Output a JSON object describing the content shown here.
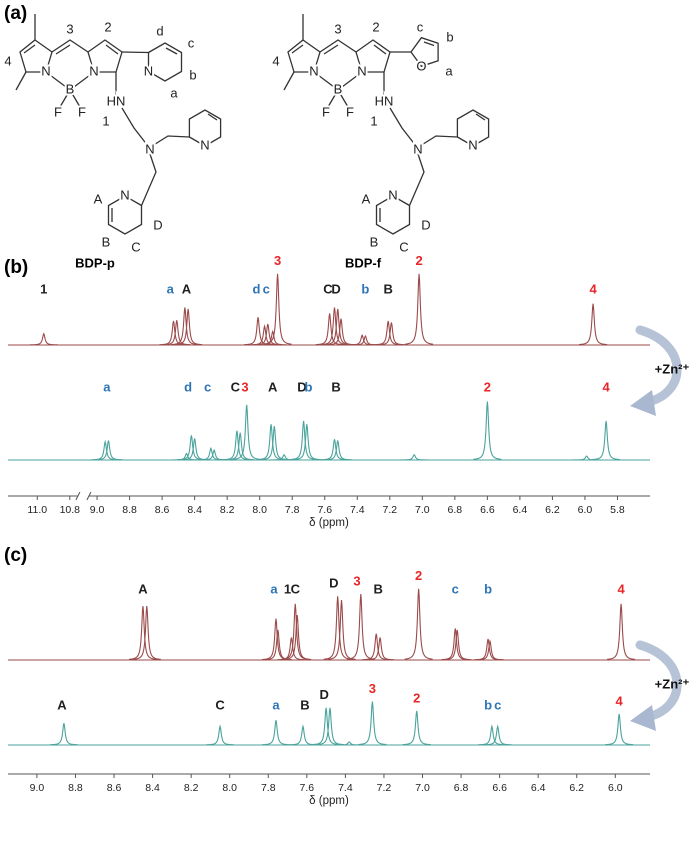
{
  "panel_label": "(a)",
  "structures": [
    {
      "name": "BDP-p",
      "labels": [
        "3",
        "2",
        "4",
        "d",
        "c",
        "b",
        "a",
        "N",
        "N",
        "N",
        "B",
        "F",
        "F",
        "HN",
        "1",
        "N",
        "N",
        "N",
        "A",
        "B",
        "C",
        "D"
      ]
    },
    {
      "name": "BDP-f",
      "labels": [
        "3",
        "2",
        "4",
        "c",
        "b",
        "a",
        "O",
        "N",
        "N",
        "B",
        "F",
        "F",
        "HN",
        "1",
        "N",
        "N",
        "N",
        "A",
        "B",
        "C",
        "D"
      ]
    }
  ],
  "chart_data": [
    {
      "type": "spectrum",
      "panel_label": "(b)",
      "xlabel": "δ (ppm)",
      "annotation": "+Zn²⁺",
      "xlim": [
        11.18,
        5.6
      ],
      "xbreak": [
        10.75,
        9.05
      ],
      "xticks": [
        {
          "value": 11,
          "label": "11.0"
        },
        10.8,
        {
          "value": 9,
          "label": "9.0"
        },
        8.8,
        8.6,
        8.4,
        8.2,
        {
          "value": 8,
          "label": "8.0"
        },
        7.8,
        7.6,
        7.4,
        7.2,
        {
          "value": 7,
          "label": "7.0"
        },
        6.8,
        6.6,
        6.4,
        6.2,
        {
          "value": 6,
          "label": "6.0"
        },
        5.8
      ],
      "series": [
        {
          "color": "#9b4a4a",
          "x": [
            10.96,
            8.53,
            8.51,
            8.46,
            8.44,
            8.01,
            7.97,
            7.95,
            7.92,
            7.89,
            7.57,
            7.54,
            7.52,
            7.5,
            7.37,
            7.35,
            7.21,
            7.19,
            7.02,
            5.95
          ],
          "values": [
            0.15,
            0.32,
            0.33,
            0.5,
            0.48,
            0.37,
            0.25,
            0.28,
            0.18,
            0.95,
            0.42,
            0.5,
            0.48,
            0.35,
            0.13,
            0.12,
            0.32,
            0.3,
            0.95,
            0.55
          ],
          "labels": [
            {
              "text": "1",
              "x": 10.96,
              "color": "#1f1f1f"
            },
            {
              "text": "a",
              "x": 8.55,
              "color": "#2e75b6"
            },
            {
              "text": "A",
              "x": 8.45,
              "color": "#1f1f1f"
            },
            {
              "text": "d",
              "x": 8.02,
              "color": "#2e75b6"
            },
            {
              "text": "c",
              "x": 7.96,
              "color": "#2e75b6"
            },
            {
              "text": "3",
              "x": 7.89,
              "color": "#e8262a"
            },
            {
              "text": "C",
              "x": 7.58,
              "color": "#1f1f1f"
            },
            {
              "text": "D",
              "x": 7.53,
              "color": "#1f1f1f"
            },
            {
              "text": "b",
              "x": 7.35,
              "color": "#2e75b6"
            },
            {
              "text": "B",
              "x": 7.21,
              "color": "#1f1f1f"
            },
            {
              "text": "2",
              "x": 7.02,
              "color": "#e8262a"
            },
            {
              "text": "4",
              "x": 5.95,
              "color": "#e8262a"
            }
          ]
        },
        {
          "color": "#4aa39c",
          "x": [
            8.95,
            8.93,
            8.45,
            8.42,
            8.4,
            8.3,
            8.28,
            8.14,
            8.12,
            8.08,
            7.93,
            7.91,
            7.85,
            7.73,
            7.71,
            7.54,
            7.52,
            7.05,
            6.6,
            5.99,
            5.87
          ],
          "values": [
            0.28,
            0.3,
            0.1,
            0.38,
            0.33,
            0.18,
            0.15,
            0.45,
            0.42,
            0.85,
            0.55,
            0.52,
            0.08,
            0.6,
            0.55,
            0.32,
            0.3,
            0.08,
            0.9,
            0.06,
            0.6
          ],
          "labels": [
            {
              "text": "a",
              "x": 8.94,
              "color": "#2e75b6"
            },
            {
              "text": "d",
              "x": 8.44,
              "color": "#2e75b6"
            },
            {
              "text": "c",
              "x": 8.32,
              "color": "#2e75b6"
            },
            {
              "text": "C",
              "x": 8.15,
              "color": "#1f1f1f"
            },
            {
              "text": "3",
              "x": 8.09,
              "color": "#e8262a"
            },
            {
              "text": "A",
              "x": 7.92,
              "color": "#1f1f1f"
            },
            {
              "text": "D",
              "x": 7.74,
              "color": "#1f1f1f"
            },
            {
              "text": "b",
              "x": 7.7,
              "color": "#2e75b6"
            },
            {
              "text": "B",
              "x": 7.53,
              "color": "#1f1f1f"
            },
            {
              "text": "2",
              "x": 6.6,
              "color": "#e8262a"
            },
            {
              "text": "4",
              "x": 5.87,
              "color": "#e8262a"
            }
          ]
        }
      ]
    },
    {
      "type": "spectrum",
      "panel_label": "(c)",
      "xlabel": "δ (ppm)",
      "annotation": "+Zn²⁺",
      "xlim": [
        9.15,
        5.82
      ],
      "xticks": [
        {
          "value": 9,
          "label": "9.0"
        },
        8.8,
        8.6,
        8.4,
        8.2,
        {
          "value": 8,
          "label": "8.0"
        },
        7.8,
        7.6,
        7.4,
        7.2,
        {
          "value": 7,
          "label": "7.0"
        },
        6.8,
        6.6,
        6.4,
        6.2,
        {
          "value": 6,
          "label": "6.0"
        }
      ],
      "series": [
        {
          "color": "#9b4a4a",
          "x": [
            8.45,
            8.43,
            7.76,
            7.75,
            7.68,
            7.66,
            7.65,
            7.44,
            7.42,
            7.32,
            7.24,
            7.22,
            7.02,
            6.83,
            6.82,
            6.66,
            6.65,
            5.97
          ],
          "values": [
            0.72,
            0.72,
            0.55,
            0.4,
            0.3,
            0.75,
            0.6,
            0.85,
            0.8,
            0.88,
            0.35,
            0.3,
            0.95,
            0.42,
            0.4,
            0.28,
            0.25,
            0.75
          ],
          "labels": [
            {
              "text": "A",
              "x": 8.45,
              "color": "#1f1f1f"
            },
            {
              "text": "a",
              "x": 7.77,
              "color": "#2e75b6"
            },
            {
              "text": "1",
              "x": 7.7,
              "color": "#1f1f1f"
            },
            {
              "text": "C",
              "x": 7.66,
              "color": "#1f1f1f"
            },
            {
              "text": "D",
              "x": 7.46,
              "color": "#1f1f1f"
            },
            {
              "text": "3",
              "x": 7.34,
              "color": "#e8262a"
            },
            {
              "text": "B",
              "x": 7.23,
              "color": "#1f1f1f"
            },
            {
              "text": "2",
              "x": 7.02,
              "color": "#e8262a"
            },
            {
              "text": "c",
              "x": 6.83,
              "color": "#2e75b6"
            },
            {
              "text": "b",
              "x": 6.66,
              "color": "#2e75b6"
            },
            {
              "text": "4",
              "x": 5.97,
              "color": "#e8262a"
            }
          ]
        },
        {
          "color": "#4aa39c",
          "x": [
            8.86,
            8.05,
            7.76,
            7.62,
            7.5,
            7.48,
            7.38,
            7.26,
            7.03,
            6.64,
            6.61,
            5.98
          ],
          "values": [
            0.35,
            0.3,
            0.4,
            0.3,
            0.6,
            0.6,
            0.05,
            0.7,
            0.55,
            0.3,
            0.3,
            0.5
          ],
          "labels": [
            {
              "text": "A",
              "x": 8.87,
              "color": "#1f1f1f"
            },
            {
              "text": "C",
              "x": 8.05,
              "color": "#1f1f1f"
            },
            {
              "text": "a",
              "x": 7.76,
              "color": "#2e75b6"
            },
            {
              "text": "B",
              "x": 7.61,
              "color": "#1f1f1f"
            },
            {
              "text": "D",
              "x": 7.51,
              "color": "#1f1f1f"
            },
            {
              "text": "3",
              "x": 7.26,
              "color": "#e8262a"
            },
            {
              "text": "2",
              "x": 7.03,
              "color": "#e8262a"
            },
            {
              "text": "b",
              "x": 6.66,
              "color": "#2e75b6"
            },
            {
              "text": "c",
              "x": 6.61,
              "color": "#2e75b6"
            },
            {
              "text": "4",
              "x": 5.98,
              "color": "#e8262a"
            }
          ]
        }
      ]
    }
  ]
}
